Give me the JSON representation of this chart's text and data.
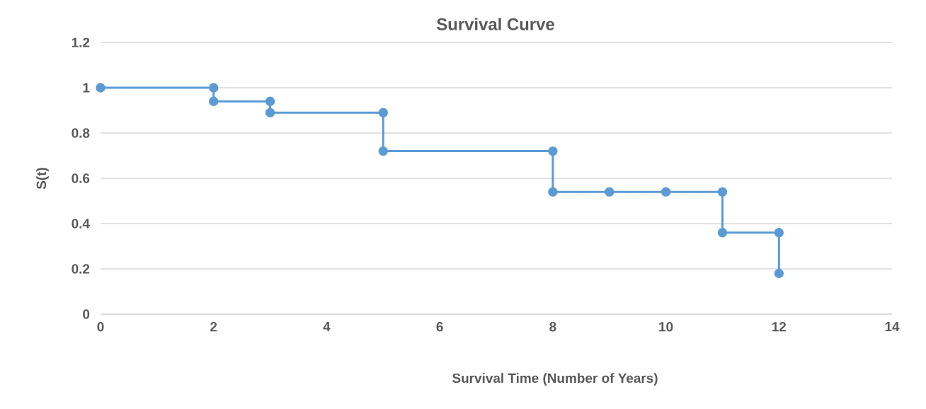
{
  "chart_data": {
    "type": "line",
    "title": "Survival Curve",
    "xlabel": "Survival Time (Number of Years)",
    "ylabel": "S(t)",
    "x": [
      0,
      2,
      2,
      3,
      3,
      5,
      5,
      8,
      8,
      9,
      10,
      11,
      11,
      12,
      12
    ],
    "series": [
      {
        "color": "#5b9bd5",
        "values": [
          1,
          1,
          0.94,
          0.94,
          0.89,
          0.89,
          0.72,
          0.72,
          0.54,
          0.54,
          0.54,
          0.54,
          0.36,
          0.36,
          0.18
        ]
      }
    ],
    "xlim": [
      0,
      14
    ],
    "xticks": [
      0,
      2,
      4,
      6,
      8,
      10,
      12,
      14
    ],
    "ylim": [
      0,
      1.2
    ],
    "yticks": [
      0,
      0.2,
      0.4,
      0.6,
      0.8,
      1,
      1.2
    ],
    "grid": "y",
    "marker": "circle",
    "line_style": "solid"
  }
}
